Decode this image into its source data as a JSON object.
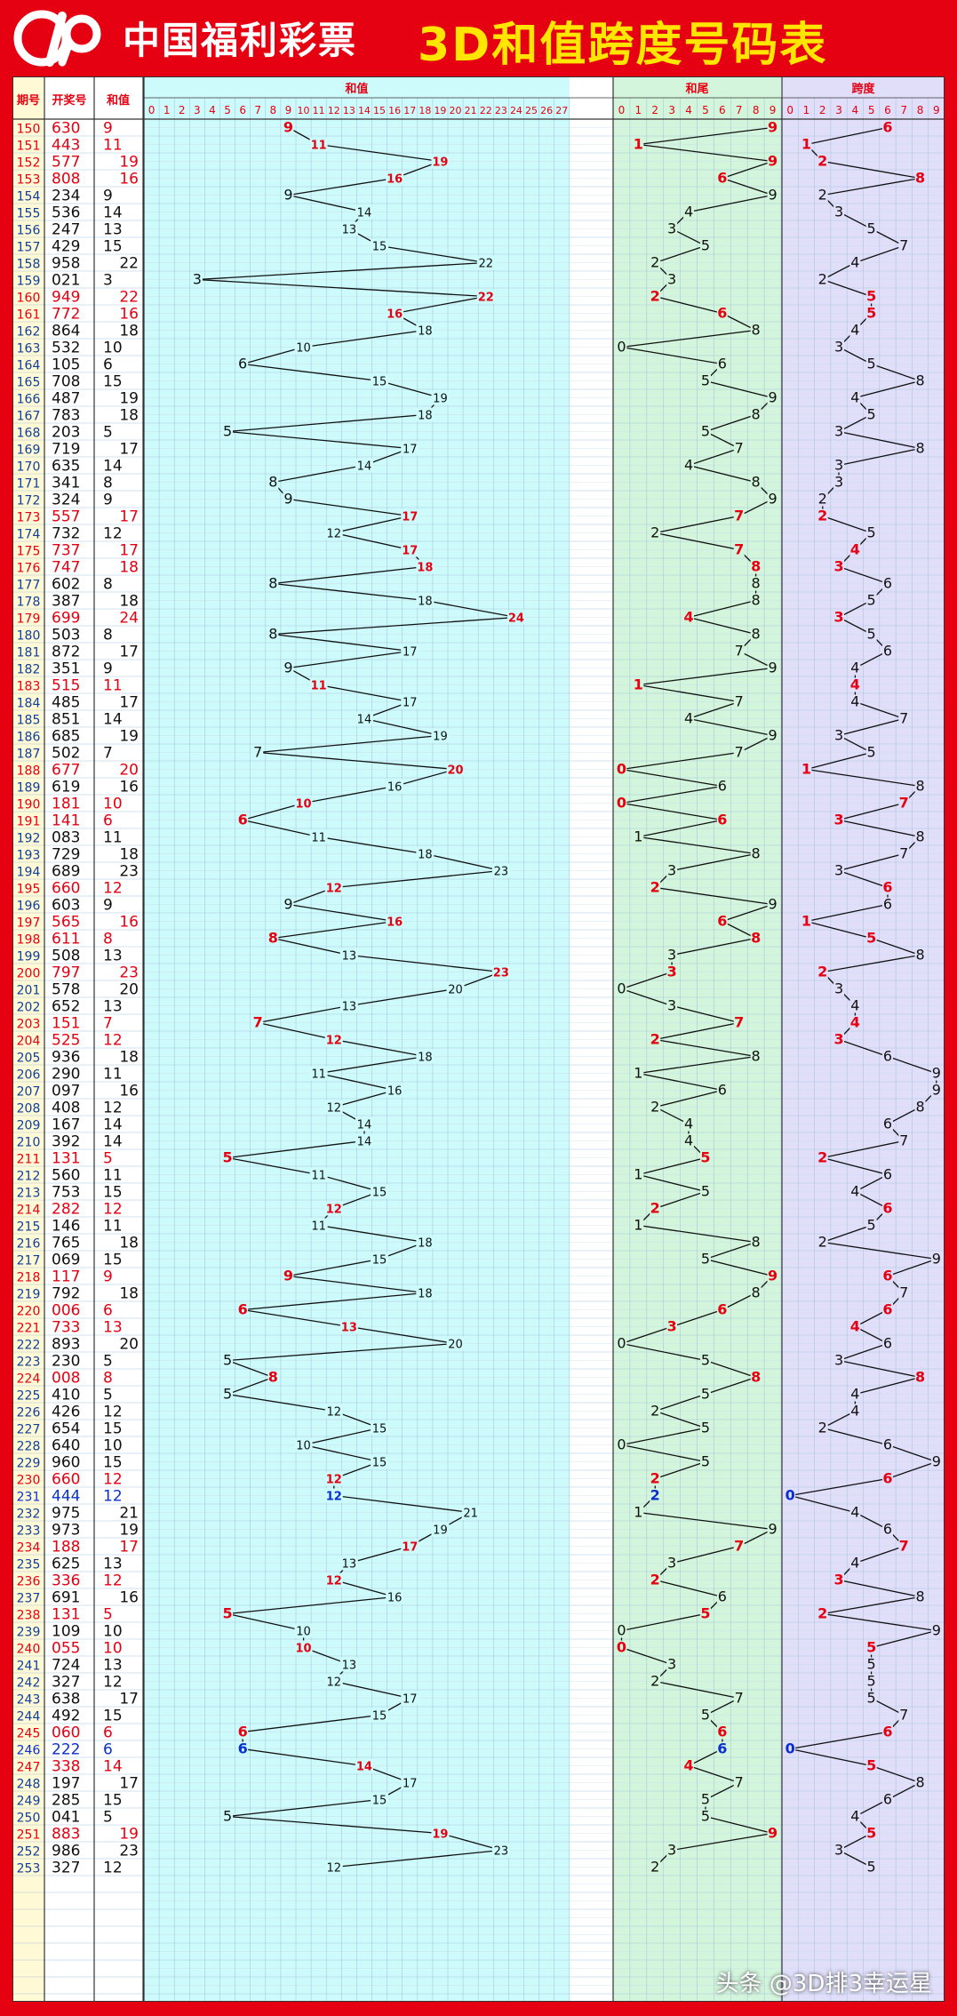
{
  "header": {
    "brand": "中国福利彩票",
    "title": "3D和值跨度号码表"
  },
  "watermark": "头条 @3D排3幸运星",
  "colors": {
    "red": "#e50012",
    "black": "#111111",
    "blue": "#0a2fd0",
    "period": "#0f3f9a",
    "yellow": "#ffe600"
  },
  "chart_data": {
    "type": "table",
    "title": "3D和值跨度号码表",
    "columns": [
      "期号",
      "开奖号",
      "和值",
      "和值",
      "和尾",
      "跨度"
    ],
    "sum_axis": [
      "0",
      "1",
      "2",
      "3",
      "4",
      "5",
      "6",
      "7",
      "8",
      "9",
      "10",
      "11",
      "12",
      "13",
      "14",
      "15",
      "16",
      "17",
      "18",
      "19",
      "20",
      "21",
      "22",
      "23",
      "24",
      "25",
      "26",
      "27"
    ],
    "tail_axis": [
      "0",
      "1",
      "2",
      "3",
      "4",
      "5",
      "6",
      "7",
      "8",
      "9"
    ],
    "span_axis": [
      "0",
      "1",
      "2",
      "3",
      "4",
      "5",
      "6",
      "7",
      "8",
      "9"
    ],
    "rows": [
      {
        "period": "150",
        "number": "630",
        "sum": 9,
        "tail": 9,
        "span": 6,
        "mark": "red"
      },
      {
        "period": "151",
        "number": "443",
        "sum": 11,
        "tail": 1,
        "span": 1,
        "mark": "red"
      },
      {
        "period": "152",
        "number": "577",
        "sum": 19,
        "tail": 9,
        "span": 2,
        "mark": "red"
      },
      {
        "period": "153",
        "number": "808",
        "sum": 16,
        "tail": 6,
        "span": 8,
        "mark": "red"
      },
      {
        "period": "154",
        "number": "234",
        "sum": 9,
        "tail": 9,
        "span": 2,
        "mark": "black"
      },
      {
        "period": "155",
        "number": "536",
        "sum": 14,
        "tail": 4,
        "span": 3,
        "mark": "black"
      },
      {
        "period": "156",
        "number": "247",
        "sum": 13,
        "tail": 3,
        "span": 5,
        "mark": "black"
      },
      {
        "period": "157",
        "number": "429",
        "sum": 15,
        "tail": 5,
        "span": 7,
        "mark": "black"
      },
      {
        "period": "158",
        "number": "958",
        "sum": 22,
        "tail": 2,
        "span": 4,
        "mark": "black"
      },
      {
        "period": "159",
        "number": "021",
        "sum": 3,
        "tail": 3,
        "span": 2,
        "mark": "black"
      },
      {
        "period": "160",
        "number": "949",
        "sum": 22,
        "tail": 2,
        "span": 5,
        "mark": "red"
      },
      {
        "period": "161",
        "number": "772",
        "sum": 16,
        "tail": 6,
        "span": 5,
        "mark": "red"
      },
      {
        "period": "162",
        "number": "864",
        "sum": 18,
        "tail": 8,
        "span": 4,
        "mark": "black"
      },
      {
        "period": "163",
        "number": "532",
        "sum": 10,
        "tail": 0,
        "span": 3,
        "mark": "black"
      },
      {
        "period": "164",
        "number": "105",
        "sum": 6,
        "tail": 6,
        "span": 5,
        "mark": "black"
      },
      {
        "period": "165",
        "number": "708",
        "sum": 15,
        "tail": 5,
        "span": 8,
        "mark": "black"
      },
      {
        "period": "166",
        "number": "487",
        "sum": 19,
        "tail": 9,
        "span": 4,
        "mark": "black"
      },
      {
        "period": "167",
        "number": "783",
        "sum": 18,
        "tail": 8,
        "span": 5,
        "mark": "black"
      },
      {
        "period": "168",
        "number": "203",
        "sum": 5,
        "tail": 5,
        "span": 3,
        "mark": "black"
      },
      {
        "period": "169",
        "number": "719",
        "sum": 17,
        "tail": 7,
        "span": 8,
        "mark": "black"
      },
      {
        "period": "170",
        "number": "635",
        "sum": 14,
        "tail": 4,
        "span": 3,
        "mark": "black"
      },
      {
        "period": "171",
        "number": "341",
        "sum": 8,
        "tail": 8,
        "span": 3,
        "mark": "black"
      },
      {
        "period": "172",
        "number": "324",
        "sum": 9,
        "tail": 9,
        "span": 2,
        "mark": "black"
      },
      {
        "period": "173",
        "number": "557",
        "sum": 17,
        "tail": 7,
        "span": 2,
        "mark": "red"
      },
      {
        "period": "174",
        "number": "732",
        "sum": 12,
        "tail": 2,
        "span": 5,
        "mark": "black"
      },
      {
        "period": "175",
        "number": "737",
        "sum": 17,
        "tail": 7,
        "span": 4,
        "mark": "red"
      },
      {
        "period": "176",
        "number": "747",
        "sum": 18,
        "tail": 8,
        "span": 3,
        "mark": "red"
      },
      {
        "period": "177",
        "number": "602",
        "sum": 8,
        "tail": 8,
        "span": 6,
        "mark": "black"
      },
      {
        "period": "178",
        "number": "387",
        "sum": 18,
        "tail": 8,
        "span": 5,
        "mark": "black"
      },
      {
        "period": "179",
        "number": "699",
        "sum": 24,
        "tail": 4,
        "span": 3,
        "mark": "red"
      },
      {
        "period": "180",
        "number": "503",
        "sum": 8,
        "tail": 8,
        "span": 5,
        "mark": "black"
      },
      {
        "period": "181",
        "number": "872",
        "sum": 17,
        "tail": 7,
        "span": 6,
        "mark": "black"
      },
      {
        "period": "182",
        "number": "351",
        "sum": 9,
        "tail": 9,
        "span": 4,
        "mark": "black"
      },
      {
        "period": "183",
        "number": "515",
        "sum": 11,
        "tail": 1,
        "span": 4,
        "mark": "red"
      },
      {
        "period": "184",
        "number": "485",
        "sum": 17,
        "tail": 7,
        "span": 4,
        "mark": "black"
      },
      {
        "period": "185",
        "number": "851",
        "sum": 14,
        "tail": 4,
        "span": 7,
        "mark": "black"
      },
      {
        "period": "186",
        "number": "685",
        "sum": 19,
        "tail": 9,
        "span": 3,
        "mark": "black"
      },
      {
        "period": "187",
        "number": "502",
        "sum": 7,
        "tail": 7,
        "span": 5,
        "mark": "black"
      },
      {
        "period": "188",
        "number": "677",
        "sum": 20,
        "tail": 0,
        "span": 1,
        "mark": "red"
      },
      {
        "period": "189",
        "number": "619",
        "sum": 16,
        "tail": 6,
        "span": 8,
        "mark": "black"
      },
      {
        "period": "190",
        "number": "181",
        "sum": 10,
        "tail": 0,
        "span": 7,
        "mark": "red"
      },
      {
        "period": "191",
        "number": "141",
        "sum": 6,
        "tail": 6,
        "span": 3,
        "mark": "red"
      },
      {
        "period": "192",
        "number": "083",
        "sum": 11,
        "tail": 1,
        "span": 8,
        "mark": "black"
      },
      {
        "period": "193",
        "number": "729",
        "sum": 18,
        "tail": 8,
        "span": 7,
        "mark": "black"
      },
      {
        "period": "194",
        "number": "689",
        "sum": 23,
        "tail": 3,
        "span": 3,
        "mark": "black"
      },
      {
        "period": "195",
        "number": "660",
        "sum": 12,
        "tail": 2,
        "span": 6,
        "mark": "red"
      },
      {
        "period": "196",
        "number": "603",
        "sum": 9,
        "tail": 9,
        "span": 6,
        "mark": "black"
      },
      {
        "period": "197",
        "number": "565",
        "sum": 16,
        "tail": 6,
        "span": 1,
        "mark": "red"
      },
      {
        "period": "198",
        "number": "611",
        "sum": 8,
        "tail": 8,
        "span": 5,
        "mark": "red"
      },
      {
        "period": "199",
        "number": "508",
        "sum": 13,
        "tail": 3,
        "span": 8,
        "mark": "black"
      },
      {
        "period": "200",
        "number": "797",
        "sum": 23,
        "tail": 3,
        "span": 2,
        "mark": "red"
      },
      {
        "period": "201",
        "number": "578",
        "sum": 20,
        "tail": 0,
        "span": 3,
        "mark": "black"
      },
      {
        "period": "202",
        "number": "652",
        "sum": 13,
        "tail": 3,
        "span": 4,
        "mark": "black"
      },
      {
        "period": "203",
        "number": "151",
        "sum": 7,
        "tail": 7,
        "span": 4,
        "mark": "red"
      },
      {
        "period": "204",
        "number": "525",
        "sum": 12,
        "tail": 2,
        "span": 3,
        "mark": "red"
      },
      {
        "period": "205",
        "number": "936",
        "sum": 18,
        "tail": 8,
        "span": 6,
        "mark": "black"
      },
      {
        "period": "206",
        "number": "290",
        "sum": 11,
        "tail": 1,
        "span": 9,
        "mark": "black"
      },
      {
        "period": "207",
        "number": "097",
        "sum": 16,
        "tail": 6,
        "span": 9,
        "mark": "black"
      },
      {
        "period": "208",
        "number": "408",
        "sum": 12,
        "tail": 2,
        "span": 8,
        "mark": "black"
      },
      {
        "period": "209",
        "number": "167",
        "sum": 14,
        "tail": 4,
        "span": 6,
        "mark": "black"
      },
      {
        "period": "210",
        "number": "392",
        "sum": 14,
        "tail": 4,
        "span": 7,
        "mark": "black"
      },
      {
        "period": "211",
        "number": "131",
        "sum": 5,
        "tail": 5,
        "span": 2,
        "mark": "red"
      },
      {
        "period": "212",
        "number": "560",
        "sum": 11,
        "tail": 1,
        "span": 6,
        "mark": "black"
      },
      {
        "period": "213",
        "number": "753",
        "sum": 15,
        "tail": 5,
        "span": 4,
        "mark": "black"
      },
      {
        "period": "214",
        "number": "282",
        "sum": 12,
        "tail": 2,
        "span": 6,
        "mark": "red"
      },
      {
        "period": "215",
        "number": "146",
        "sum": 11,
        "tail": 1,
        "span": 5,
        "mark": "black"
      },
      {
        "period": "216",
        "number": "765",
        "sum": 18,
        "tail": 8,
        "span": 2,
        "mark": "black"
      },
      {
        "period": "217",
        "number": "069",
        "sum": 15,
        "tail": 5,
        "span": 9,
        "mark": "black"
      },
      {
        "period": "218",
        "number": "117",
        "sum": 9,
        "tail": 9,
        "span": 6,
        "mark": "red"
      },
      {
        "period": "219",
        "number": "792",
        "sum": 18,
        "tail": 8,
        "span": 7,
        "mark": "black"
      },
      {
        "period": "220",
        "number": "006",
        "sum": 6,
        "tail": 6,
        "span": 6,
        "mark": "red"
      },
      {
        "period": "221",
        "number": "733",
        "sum": 13,
        "tail": 3,
        "span": 4,
        "mark": "red"
      },
      {
        "period": "222",
        "number": "893",
        "sum": 20,
        "tail": 0,
        "span": 6,
        "mark": "black"
      },
      {
        "period": "223",
        "number": "230",
        "sum": 5,
        "tail": 5,
        "span": 3,
        "mark": "black"
      },
      {
        "period": "224",
        "number": "008",
        "sum": 8,
        "tail": 8,
        "span": 8,
        "mark": "red"
      },
      {
        "period": "225",
        "number": "410",
        "sum": 5,
        "tail": 5,
        "span": 4,
        "mark": "black"
      },
      {
        "period": "226",
        "number": "426",
        "sum": 12,
        "tail": 2,
        "span": 4,
        "mark": "black"
      },
      {
        "period": "227",
        "number": "654",
        "sum": 15,
        "tail": 5,
        "span": 2,
        "mark": "black"
      },
      {
        "period": "228",
        "number": "640",
        "sum": 10,
        "tail": 0,
        "span": 6,
        "mark": "black"
      },
      {
        "period": "229",
        "number": "960",
        "sum": 15,
        "tail": 5,
        "span": 9,
        "mark": "black"
      },
      {
        "period": "230",
        "number": "660",
        "sum": 12,
        "tail": 2,
        "span": 6,
        "mark": "red"
      },
      {
        "period": "231",
        "number": "444",
        "sum": 12,
        "tail": 2,
        "span": 0,
        "mark": "blue"
      },
      {
        "period": "232",
        "number": "975",
        "sum": 21,
        "tail": 1,
        "span": 4,
        "mark": "black"
      },
      {
        "period": "233",
        "number": "973",
        "sum": 19,
        "tail": 9,
        "span": 6,
        "mark": "black"
      },
      {
        "period": "234",
        "number": "188",
        "sum": 17,
        "tail": 7,
        "span": 7,
        "mark": "red"
      },
      {
        "period": "235",
        "number": "625",
        "sum": 13,
        "tail": 3,
        "span": 4,
        "mark": "black"
      },
      {
        "period": "236",
        "number": "336",
        "sum": 12,
        "tail": 2,
        "span": 3,
        "mark": "red"
      },
      {
        "period": "237",
        "number": "691",
        "sum": 16,
        "tail": 6,
        "span": 8,
        "mark": "black"
      },
      {
        "period": "238",
        "number": "131",
        "sum": 5,
        "tail": 5,
        "span": 2,
        "mark": "red"
      },
      {
        "period": "239",
        "number": "109",
        "sum": 10,
        "tail": 0,
        "span": 9,
        "mark": "black"
      },
      {
        "period": "240",
        "number": "055",
        "sum": 10,
        "tail": 0,
        "span": 5,
        "mark": "red"
      },
      {
        "period": "241",
        "number": "724",
        "sum": 13,
        "tail": 3,
        "span": 5,
        "mark": "black"
      },
      {
        "period": "242",
        "number": "327",
        "sum": 12,
        "tail": 2,
        "span": 5,
        "mark": "black"
      },
      {
        "period": "243",
        "number": "638",
        "sum": 17,
        "tail": 7,
        "span": 5,
        "mark": "black"
      },
      {
        "period": "244",
        "number": "492",
        "sum": 15,
        "tail": 5,
        "span": 7,
        "mark": "black"
      },
      {
        "period": "245",
        "number": "060",
        "sum": 6,
        "tail": 6,
        "span": 6,
        "mark": "red"
      },
      {
        "period": "246",
        "number": "222",
        "sum": 6,
        "tail": 6,
        "span": 0,
        "mark": "blue"
      },
      {
        "period": "247",
        "number": "338",
        "sum": 14,
        "tail": 4,
        "span": 5,
        "mark": "red"
      },
      {
        "period": "248",
        "number": "197",
        "sum": 17,
        "tail": 7,
        "span": 8,
        "mark": "black"
      },
      {
        "period": "249",
        "number": "285",
        "sum": 15,
        "tail": 5,
        "span": 6,
        "mark": "black"
      },
      {
        "period": "250",
        "number": "041",
        "sum": 5,
        "tail": 5,
        "span": 4,
        "mark": "black"
      },
      {
        "period": "251",
        "number": "883",
        "sum": 19,
        "tail": 9,
        "span": 5,
        "mark": "red"
      },
      {
        "period": "252",
        "number": "986",
        "sum": 23,
        "tail": 3,
        "span": 3,
        "mark": "black"
      },
      {
        "period": "253",
        "number": "327",
        "sum": 12,
        "tail": 2,
        "span": 5,
        "mark": "black"
      }
    ]
  }
}
